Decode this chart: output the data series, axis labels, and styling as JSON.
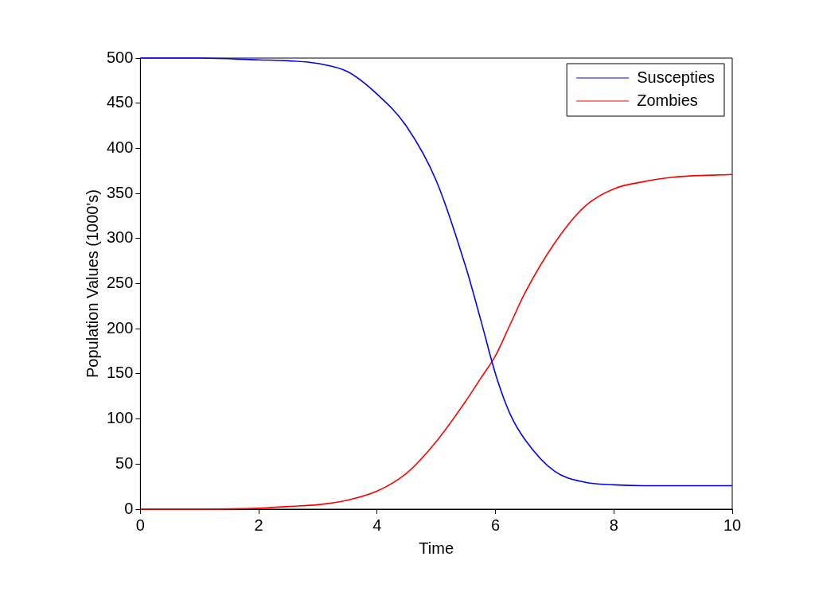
{
  "chart_data": {
    "type": "line",
    "xlabel": "Time",
    "ylabel": "Population Values (1000's)",
    "xlim": [
      0,
      10
    ],
    "xticks": [
      0,
      2,
      4,
      6,
      8,
      10
    ],
    "ylim": [
      0,
      500
    ],
    "yticks": [
      0,
      50,
      100,
      150,
      200,
      250,
      300,
      350,
      400,
      450,
      500
    ],
    "grid": false,
    "legend": "top right",
    "marker": "none",
    "line_style": "solid",
    "series": [
      {
        "name": "Suscepties",
        "color": "#0000ff",
        "x": [
          0,
          1,
          2,
          2.5,
          3,
          3.5,
          4,
          4.5,
          5,
          5.5,
          5.75,
          6,
          6.25,
          6.5,
          7,
          7.5,
          8,
          8.5,
          9,
          10
        ],
        "values": [
          500,
          500,
          498,
          497,
          494,
          485,
          460,
          424,
          364,
          268,
          210,
          150,
          105,
          77,
          42,
          30,
          27,
          26,
          26,
          26
        ]
      },
      {
        "name": "Zombies",
        "color": "#ff0000",
        "x": [
          0,
          1,
          2,
          2.5,
          3,
          3.5,
          4,
          4.5,
          5,
          5.5,
          5.75,
          6,
          6.25,
          6.5,
          7,
          7.5,
          8,
          8.5,
          9,
          10
        ],
        "values": [
          0,
          0,
          1,
          3,
          5,
          10,
          20,
          40,
          75,
          120,
          145,
          170,
          205,
          240,
          295,
          335,
          355,
          363,
          368,
          371
        ]
      }
    ]
  }
}
